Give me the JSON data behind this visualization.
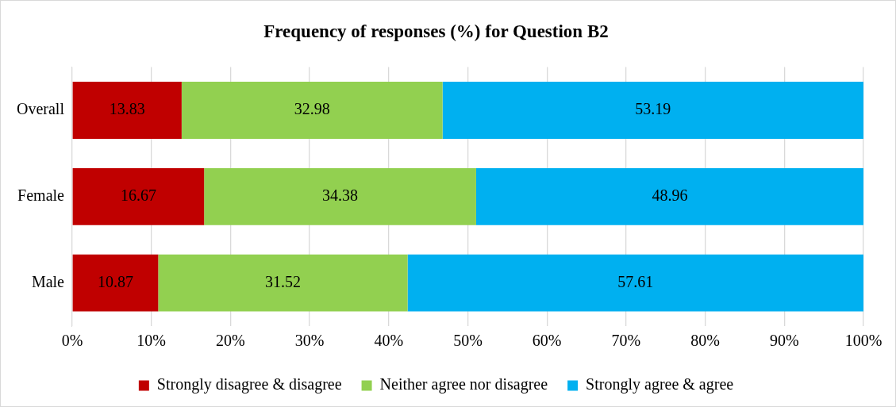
{
  "chart_data": {
    "type": "bar",
    "orientation": "horizontal",
    "stacked": true,
    "title": "Frequency of responses (%) for Question B2",
    "categories": [
      "Overall",
      "Female",
      "Male"
    ],
    "series": [
      {
        "name": "Strongly disagree & disagree",
        "color": "#c00000",
        "values": [
          13.83,
          16.67,
          10.87
        ]
      },
      {
        "name": "Neither agree nor disagree",
        "color": "#92d050",
        "values": [
          32.98,
          34.38,
          31.52
        ]
      },
      {
        "name": "Strongly agree & agree",
        "color": "#00b0f0",
        "values": [
          53.19,
          48.96,
          57.61
        ]
      }
    ],
    "xlim": [
      0,
      100
    ],
    "xticks": [
      {
        "value": 0,
        "label": "0%"
      },
      {
        "value": 10,
        "label": "10%"
      },
      {
        "value": 20,
        "label": "20%"
      },
      {
        "value": 30,
        "label": "30%"
      },
      {
        "value": 40,
        "label": "40%"
      },
      {
        "value": 50,
        "label": "50%"
      },
      {
        "value": 60,
        "label": "60%"
      },
      {
        "value": 70,
        "label": "70%"
      },
      {
        "value": 80,
        "label": "80%"
      },
      {
        "value": 90,
        "label": "90%"
      },
      {
        "value": 100,
        "label": "100%"
      }
    ],
    "grid": "x",
    "legend": "bottom",
    "data_labels": true
  }
}
